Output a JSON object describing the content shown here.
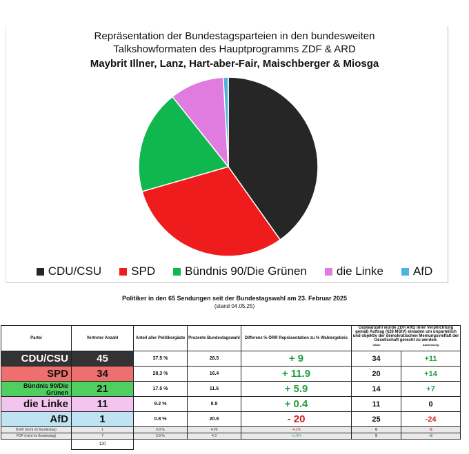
{
  "chart_data": {
    "type": "pie",
    "title_lines": [
      "Repräsentation der Bundestagsparteien in den bundesweiten",
      "Talkshowformaten des Hauptprogramms ZDF & ARD",
      "Maybrit Illner, Lanz, Hart-aber-Fair, Maischberger & Miosga"
    ],
    "categories": [
      "CDU/CSU",
      "SPD",
      "Bündnis 90/Die Grünen",
      "die Linke",
      "AfD"
    ],
    "values": [
      45,
      34,
      21,
      11,
      1
    ],
    "colors": [
      "#262626",
      "#ee1c1c",
      "#10b64e",
      "#e07be0",
      "#4fb3dd"
    ],
    "legend_position": "bottom"
  },
  "table": {
    "heading": "Politiker in den  65 Sendungen seit der Bundestagswahl am 23. Februar 2025",
    "stand": "(stand 04.05.25)",
    "headers": {
      "partei": "Partei",
      "vertreter": "Vertreter Anzahl",
      "anteil": "Anteil aller Politikergäste",
      "prozente": "Prozente Bundestagswahl",
      "differenz": "Differenz  % ÖRR Repräsentation zu % Wahlergebnis",
      "gaeste_note": "Gästeanzahl würde ZDF/ARD  ihrer Verpflichtung gemäß  Auftrag (§26 MStV) einladen um unparteilich und objektiv der demokratischen Meinungsvielfalt der Gesellschaft gerecht zu werden:",
      "gaeste": "Gäste",
      "abweichung": "Abweichung"
    },
    "rows": [
      {
        "party": "CDU/CSU",
        "count": "45",
        "anteil": "37.5 %",
        "prozente": "28.5",
        "diff": "+ 9",
        "gaeste": "34",
        "abw": "+11",
        "bg": "#333333",
        "fg": "#ffffff"
      },
      {
        "party": "SPD",
        "count": "34",
        "anteil": "28,3 %",
        "prozente": "16.4",
        "diff": "+ 11.9",
        "gaeste": "20",
        "abw": "+14",
        "bg": "#ef6f6f",
        "fg": "#111111"
      },
      {
        "party": "Bündnis 90/Die Grünen",
        "count": "21",
        "anteil": "17.5 %",
        "prozente": "11.6",
        "diff": "+ 5.9",
        "gaeste": "14",
        "abw": "+7",
        "bg": "#4fcf5f",
        "fg": "#111111"
      },
      {
        "party": "die Linke",
        "count": "11",
        "anteil": "9.2 %",
        "prozente": "8.8",
        "diff": "+ 0.4",
        "gaeste": "11",
        "abw": "0",
        "bg": "#f2c4ef",
        "fg": "#111111"
      },
      {
        "party": "AfD",
        "count": "1",
        "anteil": "0.8 %",
        "prozente": "20.8",
        "diff": "- 20",
        "gaeste": "25",
        "abw": "-24",
        "bg": "#bfe3f2",
        "fg": "#111111"
      }
    ],
    "small_rows": [
      {
        "party": "BSW (nicht im Bundestag)",
        "count": "1",
        "anteil": "0.8 %",
        "prozente": "4.99",
        "diff": "-4.2%",
        "gaeste": "6",
        "abw": "-5"
      },
      {
        "party": "FDP (nicht im Bundestag)",
        "count": "7",
        "anteil": "5.8 %",
        "prozente": "4.3",
        "diff": "+1.5%",
        "gaeste": "5",
        "abw": "+2"
      }
    ],
    "total": "120"
  }
}
